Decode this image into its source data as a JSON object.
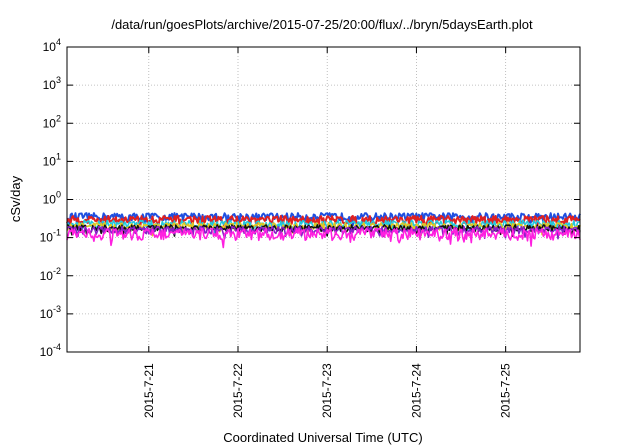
{
  "chart_data": {
    "type": "line",
    "title": "/data/run/goesPlots/archive/2015-07-25/20:00/flux/../bryn/5daysEarth.plot",
    "xlabel": "Coordinated Universal Time (UTC)",
    "ylabel": "cSv/day",
    "yscale": "log",
    "ylim": [
      0.0001,
      10000
    ],
    "xlim": [
      "2015-07-20 02:00",
      "2015-07-25 20:00"
    ],
    "grid": true,
    "y_ticks": [
      {
        "base": "10",
        "exp": "-4"
      },
      {
        "base": "10",
        "exp": "-3"
      },
      {
        "base": "10",
        "exp": "-2"
      },
      {
        "base": "10",
        "exp": "-1"
      },
      {
        "base": "10",
        "exp": "0"
      },
      {
        "base": "10",
        "exp": "1"
      },
      {
        "base": "10",
        "exp": "2"
      },
      {
        "base": "10",
        "exp": "3"
      },
      {
        "base": "10",
        "exp": "4"
      }
    ],
    "x_ticks": [
      {
        "label": "2015-7-21",
        "date": "2015-07-21 00:00"
      },
      {
        "label": "2015-7-22",
        "date": "2015-07-22 00:00"
      },
      {
        "label": "2015-7-23",
        "date": "2015-07-23 00:00"
      },
      {
        "label": "2015-7-24",
        "date": "2015-07-24 00:00"
      },
      {
        "label": "2015-7-25",
        "date": "2015-07-25 00:00"
      }
    ],
    "series": [
      {
        "color": "#1f4fe0",
        "level": 0.36,
        "jitter": 0.09,
        "dips": []
      },
      {
        "color": "#e02020",
        "level": 0.3,
        "jitter": 0.08,
        "dips": []
      },
      {
        "color": "#20c8e0",
        "level": 0.23,
        "jitter": 0.06,
        "dips": []
      },
      {
        "color": "#e0c820",
        "level": 0.2,
        "jitter": 0.05,
        "dips": []
      },
      {
        "color": "#101010",
        "level": 0.18,
        "jitter": 0.04,
        "dips": []
      },
      {
        "color": "#8a20c8",
        "level": 0.16,
        "jitter": 0.04,
        "dips": []
      },
      {
        "color": "#ff20e0",
        "level": 0.13,
        "jitter": 0.05,
        "dips": [
          {
            "date": "2015-07-21 20:00",
            "value": 0.055
          },
          {
            "date": "2015-07-25 07:00",
            "value": 0.06
          }
        ]
      }
    ]
  }
}
